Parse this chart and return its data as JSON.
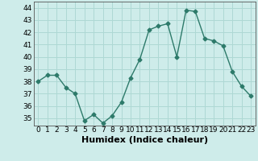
{
  "x": [
    0,
    1,
    2,
    3,
    4,
    5,
    6,
    7,
    8,
    9,
    10,
    11,
    12,
    13,
    14,
    15,
    16,
    17,
    18,
    19,
    20,
    21,
    22,
    23
  ],
  "y": [
    38,
    38.5,
    38.5,
    37.5,
    37,
    34.8,
    35.3,
    34.6,
    35.2,
    36.3,
    38.3,
    39.8,
    42.2,
    42.5,
    42.7,
    40.0,
    43.8,
    43.7,
    41.5,
    41.3,
    40.9,
    38.8,
    37.6,
    36.8
  ],
  "line_color": "#2d7a6a",
  "marker": "D",
  "markersize": 2.5,
  "linewidth": 1.0,
  "xlabel": "Humidex (Indice chaleur)",
  "xlim": [
    -0.5,
    23.5
  ],
  "ylim": [
    34.4,
    44.5
  ],
  "yticks": [
    35,
    36,
    37,
    38,
    39,
    40,
    41,
    42,
    43,
    44
  ],
  "xtick_labels": [
    "0",
    "1",
    "2",
    "3",
    "4",
    "5",
    "6",
    "7",
    "8",
    "9",
    "10",
    "11",
    "12",
    "13",
    "14",
    "15",
    "16",
    "17",
    "18",
    "19",
    "20",
    "21",
    "22",
    "23"
  ],
  "bg_color": "#ceecea",
  "grid_color": "#aed8d4",
  "tick_fontsize": 6.5,
  "xlabel_fontsize": 8,
  "xlabel_fontweight": "bold"
}
